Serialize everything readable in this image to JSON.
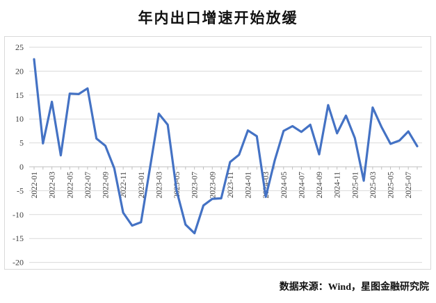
{
  "chart_data": {
    "type": "line",
    "title": "年内出口增速开始放缓",
    "source_note": "数据来源：Wind，星图金融研究院",
    "x": [
      "2022-01",
      "2022-02",
      "2022-03",
      "2022-04",
      "2022-05",
      "2022-06",
      "2022-07",
      "2022-08",
      "2022-09",
      "2022-10",
      "2022-11",
      "2022-12",
      "2023-01",
      "2023-02",
      "2023-03",
      "2023-04",
      "2023-05",
      "2023-06",
      "2023-07",
      "2023-08",
      "2023-09",
      "2023-10",
      "2023-11",
      "2023-12",
      "2024-01",
      "2024-02",
      "2024-03",
      "2024-04",
      "2024-05",
      "2024-06",
      "2024-07",
      "2024-08",
      "2024-09",
      "2024-10",
      "2024-11",
      "2024-12",
      "2025-01",
      "2025-02",
      "2025-03",
      "2025-04",
      "2025-05",
      "2025-06",
      "2025-07",
      "2025-08"
    ],
    "values": [
      22.5,
      4.9,
      13.6,
      2.4,
      15.3,
      15.2,
      16.4,
      5.9,
      4.4,
      -0.3,
      -9.6,
      -12.3,
      -11.6,
      -0.3,
      11.1,
      8.8,
      -5.0,
      -12.1,
      -13.9,
      -8.1,
      -6.7,
      -6.6,
      1.0,
      2.5,
      7.6,
      6.4,
      -6.3,
      1.3,
      7.5,
      8.5,
      7.3,
      8.8,
      2.6,
      12.9,
      7.0,
      10.7,
      6.0,
      -2.9,
      12.4,
      8.3,
      4.8,
      5.5,
      7.4,
      4.3
    ],
    "x_tick_labels": [
      "2022-01",
      "2022-03",
      "2022-05",
      "2022-07",
      "2022-09",
      "2022-11",
      "2023-01",
      "2023-03",
      "2023-05",
      "2023-07",
      "2023-09",
      "2023-11",
      "2024-01",
      "2024-03",
      "2024-05",
      "2024-07",
      "2024-09",
      "2024-11",
      "2025-01",
      "2025-03",
      "2025-05",
      "2025-07"
    ],
    "yticks": [
      25,
      20,
      15,
      10,
      5,
      0,
      -5,
      -10,
      -15,
      -20
    ],
    "ylim": [
      -20,
      25
    ],
    "xlabel": "",
    "ylabel": "",
    "grid": true,
    "legend_position": "none",
    "x_label_rotation_deg": -90,
    "line_color": "#4472C4",
    "gridline_color": "#d9d9d9",
    "axis_line_color": "#bfbfbf",
    "tick_label_color": "#404040"
  }
}
